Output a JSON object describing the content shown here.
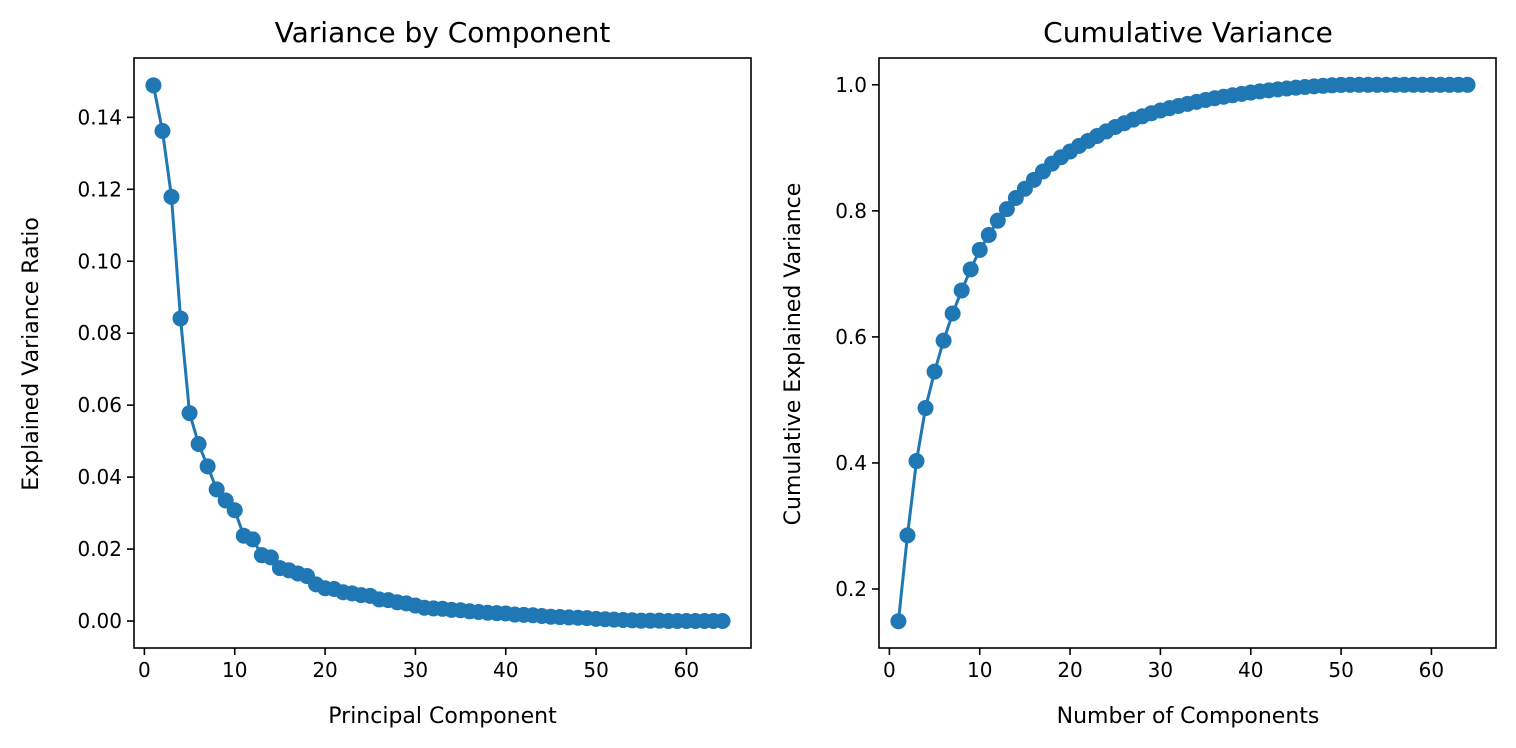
{
  "chart_data": [
    {
      "type": "line",
      "title": "Variance by Component",
      "xlabel": "Principal Component",
      "ylabel": "Explained Variance Ratio",
      "xlim": [
        -1.15,
        67.15
      ],
      "ylim": [
        -0.0075,
        0.1565
      ],
      "xticks": [
        0,
        10,
        20,
        30,
        40,
        50,
        60
      ],
      "xtick_labels": [
        "0",
        "10",
        "20",
        "30",
        "40",
        "50",
        "60"
      ],
      "yticks": [
        0.0,
        0.02,
        0.04,
        0.06,
        0.08,
        0.1,
        0.12,
        0.14
      ],
      "ytick_labels": [
        "0.00",
        "0.02",
        "0.04",
        "0.06",
        "0.08",
        "0.10",
        "0.12",
        "0.14"
      ],
      "grid": false,
      "color": "#1f77b4",
      "marker": "circle",
      "x": [
        1,
        2,
        3,
        4,
        5,
        6,
        7,
        8,
        9,
        10,
        11,
        12,
        13,
        14,
        15,
        16,
        17,
        18,
        19,
        20,
        21,
        22,
        23,
        24,
        25,
        26,
        27,
        28,
        29,
        30,
        31,
        32,
        33,
        34,
        35,
        36,
        37,
        38,
        39,
        40,
        41,
        42,
        43,
        44,
        45,
        46,
        47,
        48,
        49,
        50,
        51,
        52,
        53,
        54,
        55,
        56,
        57,
        58,
        59,
        60,
        61,
        62,
        63,
        64
      ],
      "values": [
        0.1489,
        0.1362,
        0.1179,
        0.0841,
        0.0578,
        0.0492,
        0.043,
        0.0366,
        0.0335,
        0.0308,
        0.0237,
        0.0227,
        0.0183,
        0.0177,
        0.0147,
        0.0141,
        0.0132,
        0.0125,
        0.0102,
        0.0091,
        0.0089,
        0.008,
        0.0077,
        0.0072,
        0.007,
        0.006,
        0.0058,
        0.0052,
        0.0049,
        0.0043,
        0.0037,
        0.0035,
        0.0034,
        0.0031,
        0.003,
        0.0027,
        0.0025,
        0.0023,
        0.0022,
        0.0021,
        0.0018,
        0.0017,
        0.0016,
        0.0014,
        0.0012,
        0.0011,
        0.001,
        0.0009,
        0.0008,
        0.0006,
        0.0005,
        0.0004,
        0.0003,
        0.0002,
        0.0001,
        0.0001,
        0.0001,
        0.0,
        0.0,
        0.0,
        0.0,
        0.0,
        0.0,
        0.0
      ]
    },
    {
      "type": "line",
      "title": "Cumulative Variance",
      "xlabel": "Number of Components",
      "ylabel": "Cumulative Explained Variance",
      "xlim": [
        -1.15,
        67.15
      ],
      "ylim": [
        0.1064,
        1.0425
      ],
      "xticks": [
        0,
        10,
        20,
        30,
        40,
        50,
        60
      ],
      "xtick_labels": [
        "0",
        "10",
        "20",
        "30",
        "40",
        "50",
        "60"
      ],
      "yticks": [
        0.2,
        0.4,
        0.6,
        0.8,
        1.0
      ],
      "ytick_labels": [
        "0.2",
        "0.4",
        "0.6",
        "0.8",
        "1.0"
      ],
      "grid": false,
      "color": "#1f77b4",
      "marker": "circle",
      "x": [
        1,
        2,
        3,
        4,
        5,
        6,
        7,
        8,
        9,
        10,
        11,
        12,
        13,
        14,
        15,
        16,
        17,
        18,
        19,
        20,
        21,
        22,
        23,
        24,
        25,
        26,
        27,
        28,
        29,
        30,
        31,
        32,
        33,
        34,
        35,
        36,
        37,
        38,
        39,
        40,
        41,
        42,
        43,
        44,
        45,
        46,
        47,
        48,
        49,
        50,
        51,
        52,
        53,
        54,
        55,
        56,
        57,
        58,
        59,
        60,
        61,
        62,
        63,
        64
      ],
      "values": [
        0.1489,
        0.2851,
        0.403,
        0.4871,
        0.5449,
        0.5941,
        0.6371,
        0.6737,
        0.7072,
        0.738,
        0.7617,
        0.7844,
        0.8027,
        0.8204,
        0.8351,
        0.8492,
        0.8624,
        0.8749,
        0.8851,
        0.8942,
        0.9031,
        0.9111,
        0.9188,
        0.926,
        0.933,
        0.939,
        0.9448,
        0.95,
        0.9549,
        0.9592,
        0.9629,
        0.9664,
        0.9698,
        0.9729,
        0.9759,
        0.9786,
        0.9811,
        0.9834,
        0.9856,
        0.9877,
        0.9895,
        0.9912,
        0.9928,
        0.9942,
        0.9954,
        0.9965,
        0.9975,
        0.9984,
        0.9992,
        0.9998,
        1.0,
        1.0,
        1.0,
        1.0,
        1.0,
        1.0,
        1.0,
        1.0,
        1.0,
        1.0,
        1.0,
        1.0,
        1.0,
        1.0
      ]
    }
  ]
}
